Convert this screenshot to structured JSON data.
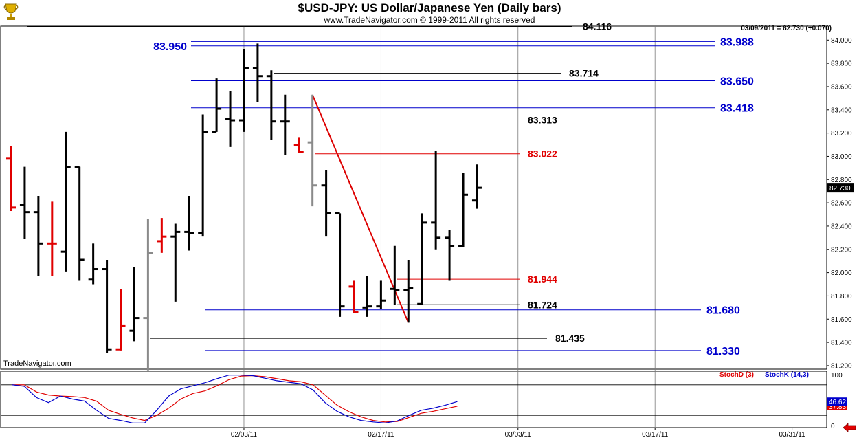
{
  "header": {
    "title": "$USD-JPY:  US Dollar/Japanese Yen  (Daily bars)",
    "subtitle": "www.TradeNavigator.com © 1999-2011 All rights reserved",
    "last_info": "03/09/2011 = 82.730 (+0.070)",
    "brand": "TradeNavigator.com"
  },
  "colors": {
    "bar_up": "#000000",
    "bar_down": "#e00000",
    "bar_neutral": "#8a8a8a",
    "level_blue": "#0000cc",
    "level_black": "#000000",
    "level_red": "#e00000",
    "trendline": "#dd0000",
    "stoch_d": "#e00000",
    "stoch_k": "#0000cc"
  },
  "chart_data": [
    {
      "type": "ohlc",
      "ylim": [
        81.17,
        84.12
      ],
      "y_ticks": [
        "84.000",
        "83.800",
        "83.600",
        "83.400",
        "83.200",
        "83.000",
        "82.800",
        "82.600",
        "82.400",
        "82.200",
        "82.000",
        "81.800",
        "81.600",
        "81.400",
        "81.200"
      ],
      "y_tick_values": [
        84.0,
        83.8,
        83.6,
        83.4,
        83.2,
        83.0,
        82.8,
        82.6,
        82.4,
        82.2,
        82.0,
        81.8,
        81.6,
        81.4,
        81.2
      ],
      "x_labels": [
        "02/03/11",
        "02/17/11",
        "03/03/11",
        "03/17/11",
        "03/31/11"
      ],
      "x_label_dates": [
        "2011-02-03",
        "2011-02-17",
        "2011-03-03",
        "2011-03-17",
        "2011-03-31"
      ],
      "last_price": "82.730",
      "bars": [
        {
          "date": "2011-01-11",
          "o": 82.98,
          "h": 83.09,
          "l": 82.53,
          "c": 82.56,
          "dir": "down"
        },
        {
          "date": "2011-01-12",
          "o": 82.58,
          "h": 82.91,
          "l": 82.29,
          "c": 82.52,
          "dir": "up"
        },
        {
          "date": "2011-01-13",
          "o": 82.52,
          "h": 82.66,
          "l": 81.97,
          "c": 82.25,
          "dir": "up"
        },
        {
          "date": "2011-01-14",
          "o": 82.25,
          "h": 82.61,
          "l": 81.97,
          "c": 82.25,
          "dir": "down"
        },
        {
          "date": "2011-01-17",
          "o": 82.18,
          "h": 83.21,
          "l": 82.01,
          "c": 82.91,
          "dir": "up"
        },
        {
          "date": "2011-01-18",
          "o": 82.91,
          "h": 82.91,
          "l": 81.93,
          "c": 82.11,
          "dir": "up"
        },
        {
          "date": "2011-01-19",
          "o": 81.94,
          "h": 82.25,
          "l": 81.9,
          "c": 82.03,
          "dir": "up"
        },
        {
          "date": "2011-01-20",
          "o": 82.03,
          "h": 82.11,
          "l": 81.31,
          "c": 81.34,
          "dir": "up"
        },
        {
          "date": "2011-01-21",
          "o": 81.34,
          "h": 81.86,
          "l": 81.33,
          "c": 81.54,
          "dir": "down"
        },
        {
          "date": "2011-01-24",
          "o": 81.5,
          "h": 82.05,
          "l": 81.41,
          "c": 81.61,
          "dir": "up"
        },
        {
          "date": "2011-01-25",
          "o": 81.61,
          "h": 82.46,
          "l": 81.16,
          "c": 82.17,
          "dir": "neutral"
        },
        {
          "date": "2011-01-26",
          "o": 82.27,
          "h": 82.47,
          "l": 82.17,
          "c": 82.31,
          "dir": "down"
        },
        {
          "date": "2011-01-27",
          "o": 82.31,
          "h": 82.42,
          "l": 81.75,
          "c": 82.35,
          "dir": "up"
        },
        {
          "date": "2011-01-28",
          "o": 82.35,
          "h": 82.66,
          "l": 82.19,
          "c": 82.34,
          "dir": "up"
        },
        {
          "date": "2011-01-31",
          "o": 82.34,
          "h": 83.36,
          "l": 82.31,
          "c": 83.21,
          "dir": "up"
        },
        {
          "date": "2011-02-01",
          "o": 83.21,
          "h": 83.67,
          "l": 83.21,
          "c": 83.41,
          "dir": "up"
        },
        {
          "date": "2011-02-02",
          "o": 83.32,
          "h": 83.56,
          "l": 83.08,
          "c": 83.31,
          "dir": "up"
        },
        {
          "date": "2011-02-03",
          "o": 83.31,
          "h": 83.92,
          "l": 83.21,
          "c": 83.76,
          "dir": "up"
        },
        {
          "date": "2011-02-04",
          "o": 83.76,
          "h": 83.97,
          "l": 83.47,
          "c": 83.69,
          "dir": "up"
        },
        {
          "date": "2011-02-07",
          "o": 83.69,
          "h": 83.74,
          "l": 83.14,
          "c": 83.3,
          "dir": "up"
        },
        {
          "date": "2011-02-08",
          "o": 83.3,
          "h": 83.53,
          "l": 83.01,
          "c": 83.3,
          "dir": "up"
        },
        {
          "date": "2011-02-09",
          "o": 83.1,
          "h": 83.16,
          "l": 83.03,
          "c": 83.04,
          "dir": "down"
        },
        {
          "date": "2011-02-10",
          "o": 83.12,
          "h": 83.53,
          "l": 82.57,
          "c": 82.75,
          "dir": "neutral"
        },
        {
          "date": "2011-02-11",
          "o": 82.75,
          "h": 82.88,
          "l": 82.31,
          "c": 82.51,
          "dir": "up"
        },
        {
          "date": "2011-02-14",
          "o": 82.51,
          "h": 82.51,
          "l": 81.62,
          "c": 81.71,
          "dir": "up"
        },
        {
          "date": "2011-02-15",
          "o": 81.88,
          "h": 81.93,
          "l": 81.65,
          "c": 81.66,
          "dir": "down"
        },
        {
          "date": "2011-02-16",
          "o": 81.7,
          "h": 81.97,
          "l": 81.62,
          "c": 81.71,
          "dir": "up"
        },
        {
          "date": "2011-02-17",
          "o": 81.71,
          "h": 81.93,
          "l": 81.69,
          "c": 81.76,
          "dir": "up"
        },
        {
          "date": "2011-02-18",
          "o": 81.86,
          "h": 82.23,
          "l": 81.72,
          "c": 81.85,
          "dir": "up"
        },
        {
          "date": "2011-02-21",
          "o": 81.85,
          "h": 82.11,
          "l": 81.57,
          "c": 81.87,
          "dir": "up"
        },
        {
          "date": "2011-02-22",
          "o": 81.73,
          "h": 82.51,
          "l": 81.72,
          "c": 82.43,
          "dir": "up"
        },
        {
          "date": "2011-02-23",
          "o": 82.43,
          "h": 83.05,
          "l": 82.2,
          "c": 82.3,
          "dir": "up"
        },
        {
          "date": "2011-02-24",
          "o": 82.3,
          "h": 82.37,
          "l": 81.93,
          "c": 82.23,
          "dir": "up"
        },
        {
          "date": "2011-02-25",
          "o": 82.23,
          "h": 82.86,
          "l": 82.22,
          "c": 82.67,
          "dir": "up"
        },
        {
          "date": "2011-02-28",
          "o": 82.62,
          "h": 82.93,
          "l": 82.55,
          "c": 82.73,
          "dir": "up"
        }
      ],
      "levels": [
        {
          "value": "84.116",
          "color": "black",
          "label_side": "center"
        },
        {
          "value": "83.988",
          "color": "blue",
          "label_side": "right"
        },
        {
          "value": "83.950",
          "color": "blue",
          "label_side": "left"
        },
        {
          "value": "83.714",
          "color": "black",
          "label_side": "center"
        },
        {
          "value": "83.650",
          "color": "blue",
          "label_side": "right"
        },
        {
          "value": "83.418",
          "color": "blue",
          "label_side": "right"
        },
        {
          "value": "83.313",
          "color": "black",
          "label_side": "center"
        },
        {
          "value": "83.022",
          "color": "red",
          "label_side": "center"
        },
        {
          "value": "81.944",
          "color": "red",
          "label_side": "center"
        },
        {
          "value": "81.724",
          "color": "black",
          "label_side": "center"
        },
        {
          "value": "81.680",
          "color": "blue",
          "label_side": "right"
        },
        {
          "value": "81.435",
          "color": "black",
          "label_side": "center"
        },
        {
          "value": "81.330",
          "color": "blue",
          "label_side": "right"
        }
      ],
      "trendline": {
        "from_date": "2011-02-10",
        "from_value": 83.53,
        "to_date": "2011-02-21",
        "to_value": 81.57
      }
    },
    {
      "type": "line",
      "ylim": [
        0,
        100
      ],
      "y_ticks": [
        "100",
        "0"
      ],
      "series": [
        {
          "name": "StochD (3)",
          "color": "#e00000",
          "last": "37.83",
          "values": [
            80,
            80,
            66,
            60,
            58,
            57,
            55,
            48,
            30,
            22,
            15,
            10,
            20,
            34,
            52,
            63,
            68,
            78,
            90,
            97,
            98,
            96,
            92,
            88,
            86,
            80,
            60,
            40,
            27,
            17,
            10,
            7,
            8,
            16,
            24,
            28,
            33,
            38
          ]
        },
        {
          "name": "StochK (14,3)",
          "color": "#0000cc",
          "last": "46.62",
          "values": [
            80,
            77,
            55,
            45,
            58,
            52,
            48,
            30,
            14,
            10,
            5,
            5,
            30,
            58,
            72,
            78,
            84,
            92,
            99,
            99,
            98,
            93,
            88,
            85,
            82,
            70,
            45,
            28,
            17,
            10,
            7,
            5,
            9,
            20,
            30,
            34,
            40,
            47
          ]
        }
      ]
    }
  ]
}
